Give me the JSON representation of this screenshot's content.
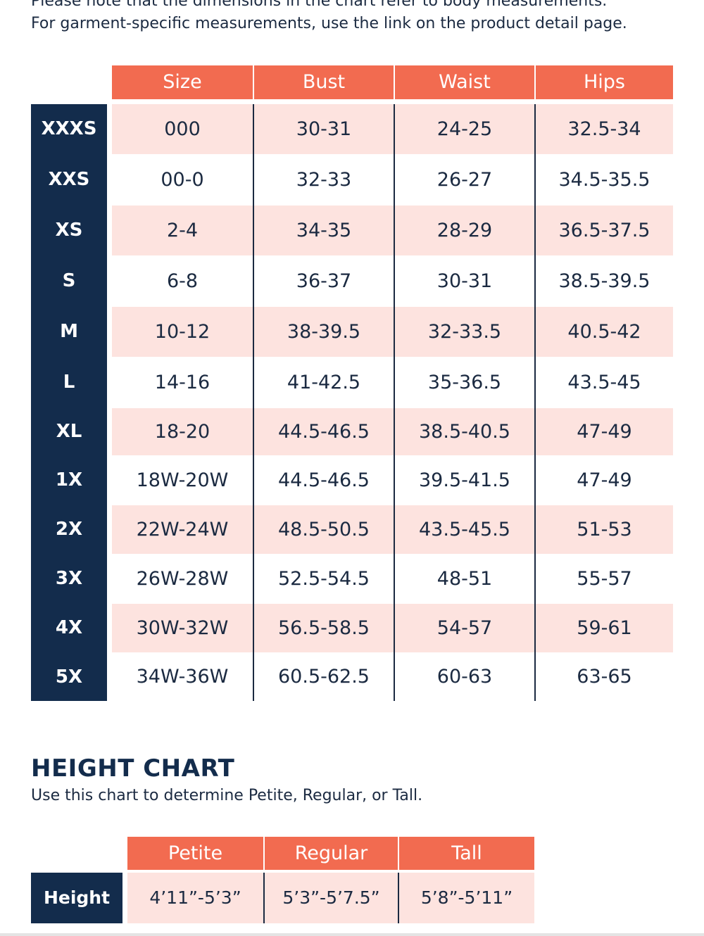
{
  "intro": {
    "line1": "Please note that the dimensions in the chart refer to body measurements.",
    "line2": "For garment-specific measurements, use the link on the product detail page."
  },
  "size_chart": {
    "headers": [
      "Size",
      "Bust",
      "Waist",
      "Hips"
    ],
    "rows": [
      {
        "label": "XXXS",
        "cells": [
          "000",
          "30-31",
          "24-25",
          "32.5-34"
        ]
      },
      {
        "label": "XXS",
        "cells": [
          "00-0",
          "32-33",
          "26-27",
          "34.5-35.5"
        ]
      },
      {
        "label": "XS",
        "cells": [
          "2-4",
          "34-35",
          "28-29",
          "36.5-37.5"
        ]
      },
      {
        "label": "S",
        "cells": [
          "6-8",
          "36-37",
          "30-31",
          "38.5-39.5"
        ]
      },
      {
        "label": "M",
        "cells": [
          "10-12",
          "38-39.5",
          "32-33.5",
          "40.5-42"
        ]
      },
      {
        "label": "L",
        "cells": [
          "14-16",
          "41-42.5",
          "35-36.5",
          "43.5-45"
        ]
      },
      {
        "label": "XL",
        "cells": [
          "18-20",
          "44.5-46.5",
          "38.5-40.5",
          "47-49"
        ]
      },
      {
        "label": "1X",
        "cells": [
          "18W-20W",
          "44.5-46.5",
          "39.5-41.5",
          "47-49"
        ]
      },
      {
        "label": "2X",
        "cells": [
          "22W-24W",
          "48.5-50.5",
          "43.5-45.5",
          "51-53"
        ]
      },
      {
        "label": "3X",
        "cells": [
          "26W-28W",
          "52.5-54.5",
          "48-51",
          "55-57"
        ]
      },
      {
        "label": "4X",
        "cells": [
          "30W-32W",
          "56.5-58.5",
          "54-57",
          "59-61"
        ]
      },
      {
        "label": "5X",
        "cells": [
          "34W-36W",
          "60.5-62.5",
          "60-63",
          "63-65"
        ]
      }
    ]
  },
  "height_chart": {
    "title": "HEIGHT CHART",
    "subtitle": "Use this chart to determine Petite, Regular, or Tall.",
    "headers": [
      "Petite",
      "Regular",
      "Tall"
    ],
    "row_label": "Height",
    "cells": [
      "4’11”-5’3”",
      "5’3”-5’7.5”",
      "5’8”-5’11”"
    ]
  },
  "colors": {
    "header_bg": "#f26b50",
    "label_bg": "#132c4c",
    "shaded_row": "#fde3df",
    "text": "#1b2a41"
  }
}
